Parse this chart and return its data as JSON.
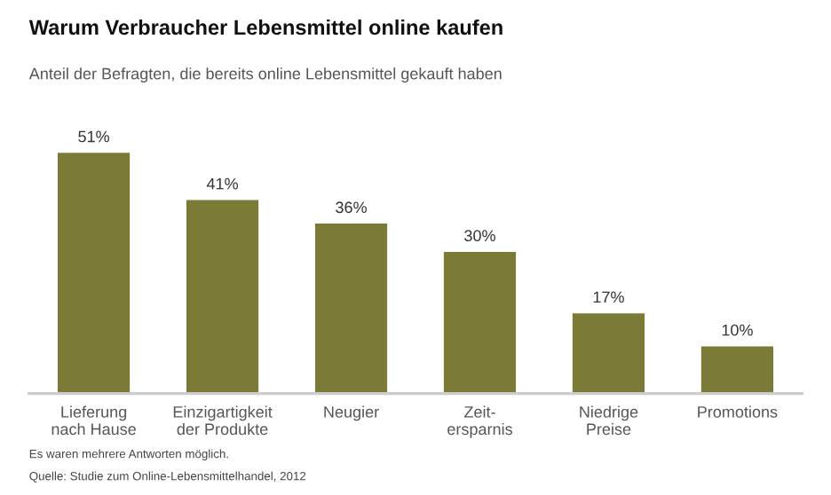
{
  "chart_data": {
    "type": "bar",
    "title": "Warum Verbraucher Lebensmittel online kaufen",
    "subtitle": "Anteil der Befragten, die bereits online Lebensmittel gekauft haben",
    "categories": [
      "Lieferung\nnach Hause",
      "Einzigartigkeit\nder Produkte",
      "Neugier",
      "Zeit-\nersparnis",
      "Niedrige\nPreise",
      "Promotions"
    ],
    "values": [
      51,
      41,
      36,
      30,
      17,
      10
    ],
    "value_labels": [
      "51%",
      "41%",
      "36%",
      "30%",
      "17%",
      "10%"
    ],
    "color": "#7b7b37",
    "grid": false,
    "legend": false,
    "annotations": [
      "Es waren mehrere Antworten möglich.",
      "Quelle: Studie zum Online-Lebensmittelhandel, 2012"
    ]
  }
}
